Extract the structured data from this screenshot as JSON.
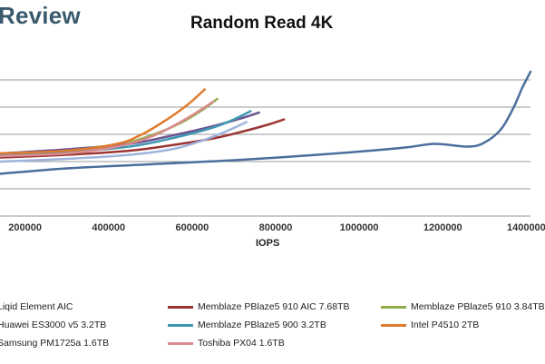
{
  "brand": "Review",
  "chart_data": {
    "type": "line",
    "title": "Random Read 4K",
    "xlabel": "IOPS",
    "ylabel": "",
    "x_ticks": [
      200000,
      400000,
      600000,
      800000,
      1000000,
      1200000,
      1400000
    ],
    "x_tick_labels": [
      "200000",
      "400000",
      "600000",
      "800000",
      "1000000",
      "1200000",
      "1400000"
    ],
    "xlim": [
      140000,
      1410000
    ],
    "ylim": [
      0,
      6
    ],
    "y_gridlines": [
      1,
      2,
      3,
      4,
      5
    ],
    "grid": true,
    "legend_position": "bottom",
    "series": [
      {
        "name": "Liqid Element AIC",
        "color": "#4a6f9c",
        "x": [
          140000,
          300000,
          500000,
          700000,
          900000,
          1100000,
          1180000,
          1260000,
          1300000,
          1340000,
          1370000,
          1390000,
          1410000
        ],
        "y": [
          1.55,
          1.75,
          1.9,
          2.05,
          2.25,
          2.5,
          2.65,
          2.55,
          2.7,
          3.2,
          4.0,
          4.7,
          5.3
        ]
      },
      {
        "name": "Memblaze PBlaze5 910 AIC 7.68TB",
        "color": "#9b3533",
        "x": [
          140000,
          300000,
          450000,
          550000,
          650000,
          720000,
          780000,
          820000
        ],
        "y": [
          2.15,
          2.25,
          2.4,
          2.6,
          2.85,
          3.1,
          3.35,
          3.55
        ]
      },
      {
        "name": "Memblaze PBlaze5 910 3.84TB",
        "color": "#8fad4a",
        "x": [
          140000,
          300000,
          420000,
          500000,
          570000,
          620000,
          660000
        ],
        "y": [
          2.2,
          2.35,
          2.6,
          2.95,
          3.4,
          3.85,
          4.3
        ]
      },
      {
        "name": "Huawei ES3000 v5 3.2TB",
        "color": "#6b548f",
        "x": [
          140000,
          300000,
          450000,
          550000,
          650000,
          720000,
          760000
        ],
        "y": [
          2.3,
          2.45,
          2.65,
          2.95,
          3.3,
          3.6,
          3.8
        ]
      },
      {
        "name": "Memblaze PBlaze5 900 3.2TB",
        "color": "#3f98b3",
        "x": [
          140000,
          300000,
          450000,
          550000,
          650000,
          700000,
          740000
        ],
        "y": [
          2.25,
          2.35,
          2.55,
          2.85,
          3.25,
          3.55,
          3.85
        ]
      },
      {
        "name": "Intel P4510 2TB",
        "color": "#e07b2c",
        "x": [
          140000,
          300000,
          420000,
          480000,
          540000,
          590000,
          630000
        ],
        "y": [
          2.3,
          2.4,
          2.65,
          3.0,
          3.55,
          4.1,
          4.65
        ]
      },
      {
        "name": "Samsung PM1725a 1.6TB",
        "color": "#9fb3dc",
        "x": [
          140000,
          300000,
          450000,
          550000,
          620000,
          680000,
          730000
        ],
        "y": [
          2.0,
          2.1,
          2.25,
          2.45,
          2.75,
          3.1,
          3.45
        ]
      },
      {
        "name": "Toshiba PX04 1.6TB",
        "color": "#dc8a8f",
        "x": [
          140000,
          300000,
          420000,
          500000,
          560000,
          610000,
          650000
        ],
        "y": [
          2.2,
          2.3,
          2.55,
          2.9,
          3.35,
          3.8,
          4.2
        ]
      }
    ]
  }
}
